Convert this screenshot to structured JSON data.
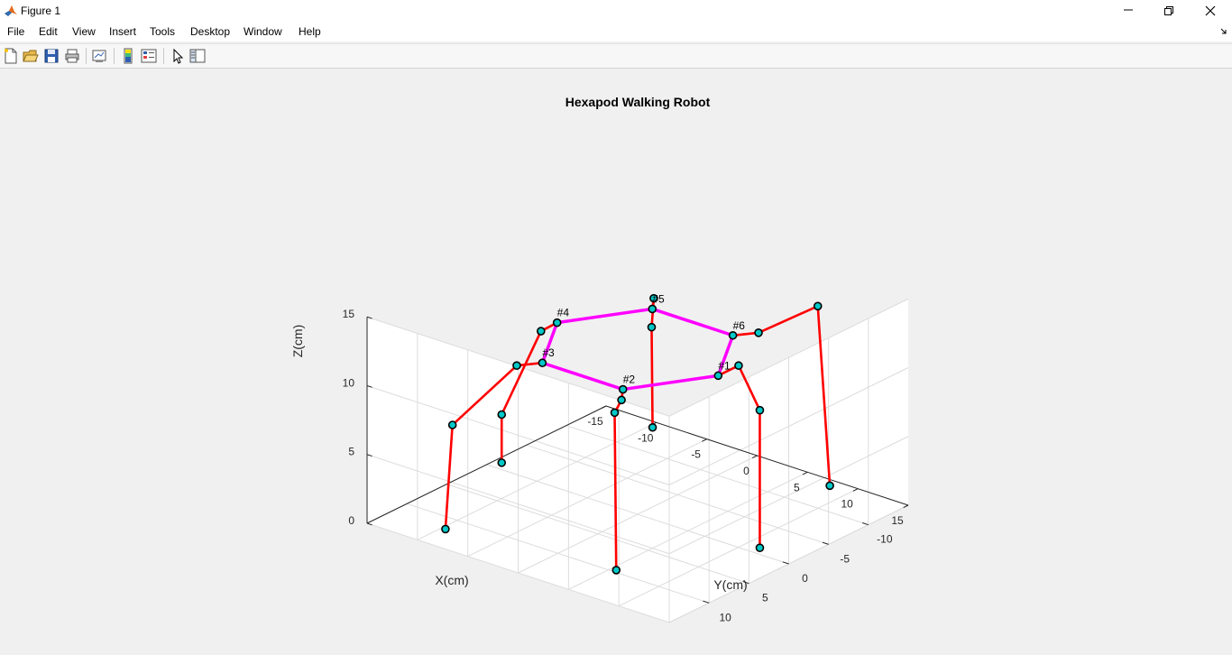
{
  "window": {
    "title": "Figure 1"
  },
  "menu": [
    "File",
    "Edit",
    "View",
    "Insert",
    "Tools",
    "Desktop",
    "Window",
    "Help"
  ],
  "toolbar": {
    "buttons": [
      "new-figure-icon",
      "open-file-icon",
      "save-icon",
      "print-icon",
      "link-plot-icon",
      "colorbar-icon",
      "legend-icon",
      "edit-plot-arrow-icon",
      "property-inspector-icon"
    ]
  },
  "colors": {
    "leg": "#ff0000",
    "body": "#ff00ff",
    "joint_fill": "#00c8c8",
    "joint_edge": "#000000"
  },
  "chart_data": {
    "type": "line3d",
    "title": "Hexapod Walking Robot",
    "xlabel": "X(cm)",
    "ylabel": "Y(cm)",
    "zlabel": "Z(cm)",
    "xlim": [
      -15,
      15
    ],
    "ylim": [
      -15,
      15
    ],
    "zlim": [
      0,
      15
    ],
    "xticks": [
      "-10",
      "-5",
      "0",
      "5",
      "10"
    ],
    "yticks": [
      "-15",
      "-10",
      "-5",
      "0",
      "5",
      "10",
      "15"
    ],
    "zticks": [
      "0",
      "5",
      "10",
      "15"
    ],
    "grid": true,
    "body_labels": [
      "#1",
      "#2",
      "#3",
      "#4",
      "#5",
      "#6"
    ],
    "body": [
      [
        0,
        8,
        12
      ],
      [
        6.9,
        4,
        12
      ],
      [
        6.9,
        -4,
        12
      ],
      [
        0,
        -8,
        12
      ],
      [
        -6.9,
        -4,
        12
      ],
      [
        -6.9,
        4,
        12
      ]
    ],
    "legs": [
      [
        [
          0,
          8,
          12
        ],
        [
          0.6,
          10.5,
          13.5
        ],
        [
          1.1,
          13,
          11
        ],
        [
          1.1,
          13,
          1
        ]
      ],
      [
        [
          6.9,
          4,
          12
        ],
        [
          8.6,
          5.2,
          12
        ],
        [
          13,
          8,
          13
        ],
        [
          12.8,
          8,
          1.5
        ]
      ],
      [
        [
          6.9,
          -4,
          12
        ],
        [
          8.6,
          -5.2,
          12
        ],
        [
          12.5,
          -8.5,
          8
        ],
        [
          13,
          -8.8,
          0.5
        ]
      ],
      [
        [
          0,
          -8,
          12
        ],
        [
          0,
          -9.6,
          11
        ],
        [
          0,
          -13.5,
          4
        ],
        [
          0,
          -13.5,
          0.5
        ]
      ],
      [
        [
          -6.9,
          -4,
          12
        ],
        [
          -8.6,
          -5.2,
          12
        ],
        [
          -12.5,
          -8.5,
          8
        ],
        [
          -13,
          -8.8,
          0.5
        ]
      ],
      [
        [
          -6.9,
          4,
          12
        ],
        [
          -8.6,
          5.2,
          12
        ],
        [
          -12.5,
          8,
          13.5
        ],
        [
          -13,
          8.8,
          0.5
        ]
      ]
    ]
  }
}
